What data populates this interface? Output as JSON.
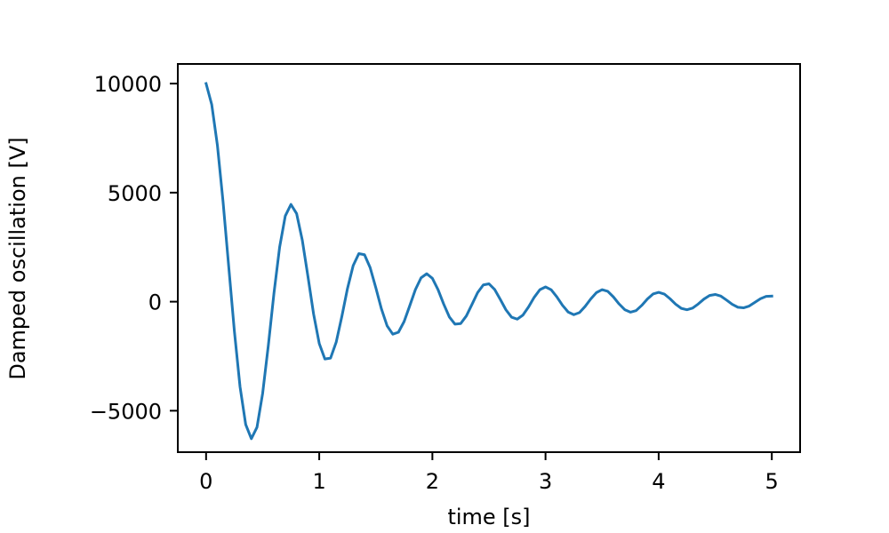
{
  "chart_data": {
    "type": "line",
    "title": "",
    "xlabel": "time [s]",
    "ylabel": "Damped oscillation [V]",
    "xlim": [
      -0.25,
      5.25
    ],
    "ylim": [
      -6900,
      10900
    ],
    "xticks": [
      0,
      1,
      2,
      3,
      4,
      5
    ],
    "xtick_labels": [
      "0",
      "1",
      "2",
      "3",
      "4",
      "5"
    ],
    "yticks": [
      -5000,
      0,
      5000,
      10000
    ],
    "ytick_labels": [
      "−5000",
      "0",
      "5000",
      "10000"
    ],
    "grid": false,
    "legend": "none",
    "line_color": "#1f77b4",
    "series": [
      {
        "x": [
          0,
          0.05,
          0.1,
          0.15,
          0.2,
          0.25,
          0.3,
          0.35,
          0.4,
          0.45,
          0.5,
          0.55,
          0.6,
          0.65,
          0.7,
          0.75,
          0.8,
          0.85,
          0.9,
          0.95,
          1.0,
          1.05,
          1.1,
          1.15,
          1.2,
          1.25,
          1.3,
          1.35,
          1.4,
          1.45,
          1.5,
          1.55,
          1.6,
          1.65,
          1.7,
          1.75,
          1.8,
          1.85,
          1.9,
          1.95,
          2.0,
          2.05,
          2.1,
          2.15,
          2.2,
          2.25,
          2.3,
          2.35,
          2.4,
          2.45,
          2.5,
          2.55,
          2.6,
          2.65,
          2.7,
          2.75,
          2.8,
          2.85,
          2.9,
          2.95,
          3.0,
          3.05,
          3.1,
          3.15,
          3.2,
          3.25,
          3.3,
          3.35,
          3.4,
          3.45,
          3.5,
          3.55,
          3.6,
          3.65,
          3.7,
          3.75,
          3.8,
          3.85,
          3.9,
          3.95,
          4.0,
          4.05,
          4.1,
          4.15,
          4.2,
          4.25,
          4.3,
          4.35,
          4.4,
          4.45,
          4.5,
          4.55,
          4.6,
          4.65,
          4.7,
          4.75,
          4.8,
          4.85,
          4.9,
          4.95,
          5.0
        ],
        "y": [
          10000,
          9035,
          7170,
          4580,
          1615,
          -1348,
          -3898,
          -5628,
          -6283,
          -5756,
          -4200,
          -2010,
          392,
          2501,
          3933,
          4460,
          4038,
          2829,
          1166,
          -561,
          -1914,
          -2629,
          -2587,
          -1855,
          -673,
          612,
          1654,
          2203,
          2153,
          1563,
          640,
          -335,
          -1109,
          -1490,
          -1401,
          -912,
          -187,
          555,
          1093,
          1282,
          1071,
          551,
          -110,
          -700,
          -1031,
          -1005,
          -655,
          -127,
          415,
          769,
          819,
          563,
          107,
          -372,
          -710,
          -801,
          -616,
          -241,
          201,
          548,
          677,
          545,
          222,
          -166,
          -474,
          -598,
          -500,
          -217,
          127,
          417,
          550,
          476,
          218,
          -103,
          -366,
          -480,
          -410,
          -172,
          121,
          351,
          428,
          350,
          137,
          -116,
          -306,
          -370,
          -295,
          -104,
          119,
          284,
          331,
          255,
          73,
          -121,
          -256,
          -283,
          -200,
          -31,
          135,
          242,
          256
        ]
      }
    ]
  }
}
